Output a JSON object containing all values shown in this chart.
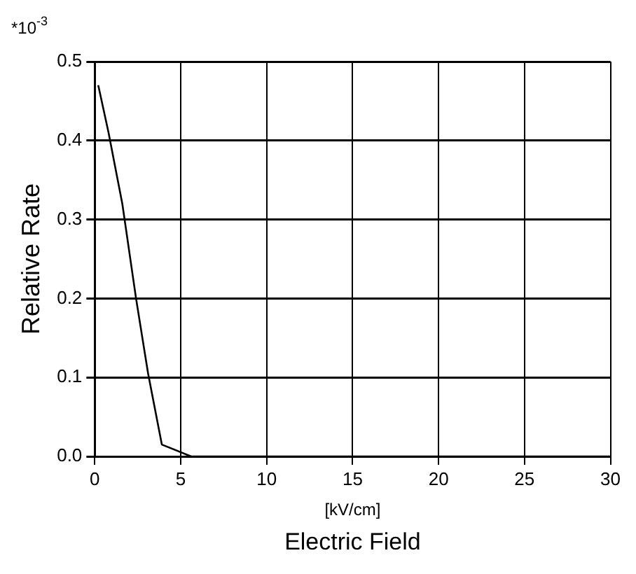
{
  "chart_data": {
    "type": "line",
    "xlabel": "Electric Field",
    "ylabel": "Relative Rate",
    "annotations": [
      "*10$^{-3}$",
      "[kV/cm]"
    ],
    "x": [
      0.2,
      0.8,
      1.6,
      2.4,
      3.1,
      3.9,
      5.6,
      10,
      15,
      20,
      25,
      30
    ],
    "series": [
      {
        "color": "#000000",
        "values": [
          0.47,
          0.41,
          0.32,
          0.2,
          0.105,
          0.015,
          0,
          0,
          0,
          0,
          0,
          0
        ]
      }
    ],
    "xlim": [
      0,
      30
    ],
    "xticks": [
      0,
      5,
      10,
      15,
      20,
      25,
      30
    ],
    "ylim": [
      0,
      0.5
    ],
    "yticks": [
      {
        "value": 0,
        "label": "0.0"
      },
      0.1,
      0.2,
      0.3,
      0.4,
      0.5
    ],
    "grid": true,
    "legend": false,
    "marker": "none",
    "line_style": "solid"
  }
}
